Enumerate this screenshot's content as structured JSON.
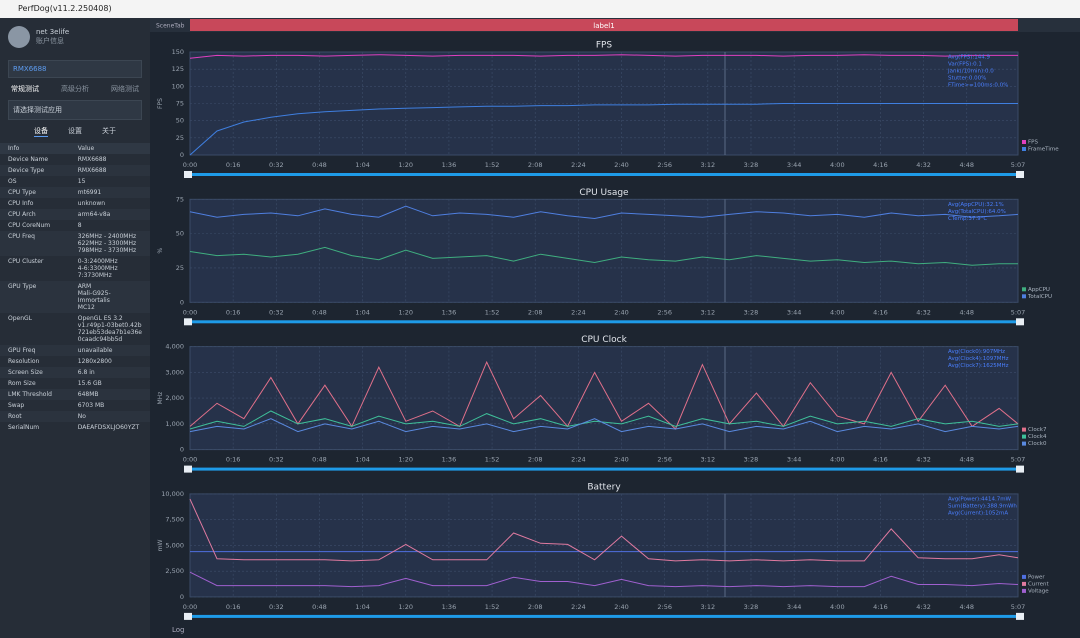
{
  "window": {
    "title": "PerfDog(v11.2.250408)"
  },
  "sidebar": {
    "user": "net 3elife",
    "account": "账户信息",
    "device": "RMX6688",
    "mode_tabs": [
      "常规测试",
      "高级分析",
      "网络测试"
    ],
    "app_select": "请选择测试应用",
    "tabs": [
      "设备",
      "设置",
      "关于"
    ],
    "info_header": [
      "Info",
      "Value"
    ],
    "info_rows": [
      [
        "Device Name",
        "RMX6688"
      ],
      [
        "Device Type",
        "RMX6688"
      ],
      [
        "OS",
        "15"
      ],
      [
        "CPU Type",
        "mt6991"
      ],
      [
        "CPU Info",
        "unknown"
      ],
      [
        "CPU Arch",
        "arm64-v8a"
      ],
      [
        "CPU CoreNum",
        "8"
      ],
      [
        "CPU Freq",
        "326MHz - 2400MHz\n622MHz - 3300MHz\n798MHz - 3730MHz"
      ],
      [
        "CPU Cluster",
        "0-3:2400MHz\n4-6:3300MHz\n7:3730MHz"
      ],
      [
        "GPU Type",
        "ARM\nMali-G925-Immortalis\nMC12"
      ],
      [
        "OpenGL",
        "OpenGL ES 3.2\nv1.r49p1-03bet0.42b\n721eb53dea7b1e36e\n0caadc94bb5d"
      ],
      [
        "GPU Freq",
        "unavailable"
      ],
      [
        "Resolution",
        "1280x2800"
      ],
      [
        "Screen Size",
        "6.8 in"
      ],
      [
        "Rom Size",
        "15.6 GB"
      ],
      [
        "LMK Threshold",
        "648MB"
      ],
      [
        "Swap",
        "6703 MB"
      ],
      [
        "Root",
        "No"
      ],
      [
        "SerialNum",
        "DAEAFDSXLJO60YZT"
      ]
    ]
  },
  "toolbar": {
    "scene_tab": "SceneTab",
    "label": "label1",
    "log": "Log"
  },
  "chart_data": [
    {
      "type": "line",
      "title": "FPS",
      "ylabel": "FPS",
      "grid": true,
      "x": [
        0,
        10,
        20,
        30,
        40,
        50,
        60,
        70,
        80,
        90,
        100,
        110,
        120,
        130,
        140,
        150,
        160,
        170,
        180,
        190,
        200,
        210,
        220,
        230,
        240,
        250,
        260,
        270,
        280,
        290,
        300,
        307
      ],
      "xlim": [
        0,
        307
      ],
      "xticks": [
        {
          "value": 0,
          "label": "0:00"
        },
        {
          "value": 16,
          "label": "0:16"
        },
        {
          "value": 32,
          "label": "0:32"
        },
        {
          "value": 48,
          "label": "0:48"
        },
        {
          "value": 64,
          "label": "1:04"
        },
        {
          "value": 80,
          "label": "1:20"
        },
        {
          "value": 96,
          "label": "1:36"
        },
        {
          "value": 112,
          "label": "1:52"
        },
        {
          "value": 128,
          "label": "2:08"
        },
        {
          "value": 144,
          "label": "2:24"
        },
        {
          "value": 160,
          "label": "2:40"
        },
        {
          "value": 176,
          "label": "2:56"
        },
        {
          "value": 192,
          "label": "3:12"
        },
        {
          "value": 208,
          "label": "3:28"
        },
        {
          "value": 224,
          "label": "3:44"
        },
        {
          "value": 240,
          "label": "4:00"
        },
        {
          "value": 256,
          "label": "4:16"
        },
        {
          "value": 272,
          "label": "4:32"
        },
        {
          "value": 288,
          "label": "4:48"
        },
        {
          "value": 307,
          "label": "5:07"
        }
      ],
      "ylim": [
        0,
        150
      ],
      "yticks": [
        0,
        25,
        50,
        75,
        100,
        125,
        150
      ],
      "series": [
        {
          "name": "FPS",
          "color": "#e040c0",
          "values": [
            141,
            145,
            144,
            145,
            145,
            144,
            145,
            146,
            145,
            144,
            145,
            145,
            145,
            144,
            145,
            145,
            146,
            145,
            144,
            145,
            145,
            145,
            144,
            145,
            145,
            146,
            145,
            145,
            144,
            145,
            145,
            145
          ]
        },
        {
          "name": "FrameTime",
          "color": "#3f7fe0",
          "values": [
            0,
            35,
            48,
            55,
            60,
            63,
            65,
            67,
            68,
            69,
            70,
            71,
            71,
            72,
            72,
            73,
            73,
            73,
            74,
            74,
            74,
            74,
            75,
            75,
            75,
            75,
            75,
            75,
            75,
            75,
            75,
            75
          ]
        }
      ],
      "stats": [
        "Avg(FPS):144.9",
        "Var(FPS):0.1",
        "Jank(/10min):0.0",
        "Stutter:0.00%",
        "FTime>=100ms:0.0%"
      ]
    },
    {
      "type": "line",
      "title": "CPU Usage",
      "ylabel": "%",
      "grid": true,
      "x": [
        0,
        10,
        20,
        30,
        40,
        50,
        60,
        70,
        80,
        90,
        100,
        110,
        120,
        130,
        140,
        150,
        160,
        170,
        180,
        190,
        200,
        210,
        220,
        230,
        240,
        250,
        260,
        270,
        280,
        290,
        300,
        307
      ],
      "xlim": [
        0,
        307
      ],
      "xticks": [
        {
          "value": 0,
          "label": "0:00"
        },
        {
          "value": 16,
          "label": "0:16"
        },
        {
          "value": 32,
          "label": "0:32"
        },
        {
          "value": 48,
          "label": "0:48"
        },
        {
          "value": 64,
          "label": "1:04"
        },
        {
          "value": 80,
          "label": "1:20"
        },
        {
          "value": 96,
          "label": "1:36"
        },
        {
          "value": 112,
          "label": "1:52"
        },
        {
          "value": 128,
          "label": "2:08"
        },
        {
          "value": 144,
          "label": "2:24"
        },
        {
          "value": 160,
          "label": "2:40"
        },
        {
          "value": 176,
          "label": "2:56"
        },
        {
          "value": 192,
          "label": "3:12"
        },
        {
          "value": 208,
          "label": "3:28"
        },
        {
          "value": 224,
          "label": "3:44"
        },
        {
          "value": 240,
          "label": "4:00"
        },
        {
          "value": 256,
          "label": "4:16"
        },
        {
          "value": 272,
          "label": "4:32"
        },
        {
          "value": 288,
          "label": "4:48"
        },
        {
          "value": 307,
          "label": "5:07"
        }
      ],
      "ylim": [
        0,
        75
      ],
      "yticks": [
        0,
        25,
        50,
        75
      ],
      "series": [
        {
          "name": "AppCPU",
          "color": "#3fae7f",
          "values": [
            37,
            34,
            35,
            33,
            35,
            40,
            34,
            31,
            38,
            32,
            33,
            34,
            30,
            35,
            32,
            29,
            33,
            31,
            30,
            33,
            31,
            34,
            32,
            30,
            31,
            29,
            30,
            28,
            29,
            27,
            28,
            28
          ]
        },
        {
          "name": "TotalCPU",
          "color": "#4f7fe0",
          "values": [
            66,
            62,
            64,
            65,
            63,
            68,
            64,
            62,
            70,
            63,
            65,
            64,
            62,
            66,
            63,
            61,
            65,
            64,
            63,
            62,
            64,
            66,
            65,
            63,
            64,
            62,
            65,
            63,
            64,
            62,
            63,
            64
          ]
        }
      ],
      "stats": [
        "Avg(AppCPU):32.1%",
        "Avg(TotalCPU):64.0%",
        "CTemp:37.9°C"
      ]
    },
    {
      "type": "line",
      "title": "CPU Clock",
      "ylabel": "MHz",
      "grid": true,
      "x": [
        0,
        10,
        20,
        30,
        40,
        50,
        60,
        70,
        80,
        90,
        100,
        110,
        120,
        130,
        140,
        150,
        160,
        170,
        180,
        190,
        200,
        210,
        220,
        230,
        240,
        250,
        260,
        270,
        280,
        290,
        300,
        307
      ],
      "xlim": [
        0,
        307
      ],
      "xticks": [
        {
          "value": 0,
          "label": "0:00"
        },
        {
          "value": 16,
          "label": "0:16"
        },
        {
          "value": 32,
          "label": "0:32"
        },
        {
          "value": 48,
          "label": "0:48"
        },
        {
          "value": 64,
          "label": "1:04"
        },
        {
          "value": 80,
          "label": "1:20"
        },
        {
          "value": 96,
          "label": "1:36"
        },
        {
          "value": 112,
          "label": "1:52"
        },
        {
          "value": 128,
          "label": "2:08"
        },
        {
          "value": 144,
          "label": "2:24"
        },
        {
          "value": 160,
          "label": "2:40"
        },
        {
          "value": 176,
          "label": "2:56"
        },
        {
          "value": 192,
          "label": "3:12"
        },
        {
          "value": 208,
          "label": "3:28"
        },
        {
          "value": 224,
          "label": "3:44"
        },
        {
          "value": 240,
          "label": "4:00"
        },
        {
          "value": 256,
          "label": "4:16"
        },
        {
          "value": 272,
          "label": "4:32"
        },
        {
          "value": 288,
          "label": "4:48"
        },
        {
          "value": 307,
          "label": "5:07"
        }
      ],
      "ylim": [
        0,
        4000
      ],
      "yticks": [
        0,
        {
          "value": 1000,
          "label": "1,000"
        },
        {
          "value": 2000,
          "label": "2,000"
        },
        {
          "value": 3000,
          "label": "3,000"
        },
        {
          "value": 4000,
          "label": "4,000"
        }
      ],
      "series": [
        {
          "name": "Clock7",
          "color": "#e0708a",
          "values": [
            900,
            1800,
            1200,
            2800,
            1000,
            2500,
            900,
            3200,
            1100,
            1500,
            900,
            3400,
            1200,
            2100,
            900,
            3000,
            1100,
            1800,
            800,
            3300,
            1000,
            2200,
            900,
            2600,
            1300,
            1000,
            3000,
            1100,
            2500,
            900,
            1600,
            1000
          ]
        },
        {
          "name": "Clock4",
          "color": "#3fc09a",
          "values": [
            800,
            1100,
            900,
            1500,
            1000,
            1200,
            900,
            1300,
            1000,
            1100,
            900,
            1400,
            1000,
            1200,
            900,
            1100,
            1000,
            1300,
            900,
            1200,
            1000,
            1100,
            900,
            1300,
            1000,
            1100,
            900,
            1200,
            1000,
            1100,
            900,
            1000
          ]
        },
        {
          "name": "Clock0",
          "color": "#5a8ae0",
          "values": [
            700,
            900,
            800,
            1200,
            700,
            1000,
            800,
            1100,
            700,
            900,
            800,
            1000,
            700,
            900,
            800,
            1200,
            700,
            900,
            800,
            1000,
            700,
            900,
            800,
            1100,
            700,
            900,
            800,
            1000,
            700,
            900,
            800,
            900
          ]
        }
      ],
      "stats": [
        "Avg(Clock0):907MHz",
        "Avg(Clock4):1097MHz",
        "Avg(Clock7):1625MHz"
      ]
    },
    {
      "type": "line",
      "title": "Battery",
      "ylabel": "mW",
      "grid": true,
      "x": [
        0,
        10,
        20,
        30,
        40,
        50,
        60,
        70,
        80,
        90,
        100,
        110,
        120,
        130,
        140,
        150,
        160,
        170,
        180,
        190,
        200,
        210,
        220,
        230,
        240,
        250,
        260,
        270,
        280,
        290,
        300,
        307
      ],
      "xlim": [
        0,
        307
      ],
      "xticks": [
        {
          "value": 0,
          "label": "0:00"
        },
        {
          "value": 16,
          "label": "0:16"
        },
        {
          "value": 32,
          "label": "0:32"
        },
        {
          "value": 48,
          "label": "0:48"
        },
        {
          "value": 64,
          "label": "1:04"
        },
        {
          "value": 80,
          "label": "1:20"
        },
        {
          "value": 96,
          "label": "1:36"
        },
        {
          "value": 112,
          "label": "1:52"
        },
        {
          "value": 128,
          "label": "2:08"
        },
        {
          "value": 144,
          "label": "2:24"
        },
        {
          "value": 160,
          "label": "2:40"
        },
        {
          "value": 176,
          "label": "2:56"
        },
        {
          "value": 192,
          "label": "3:12"
        },
        {
          "value": 208,
          "label": "3:28"
        },
        {
          "value": 224,
          "label": "3:44"
        },
        {
          "value": 240,
          "label": "4:00"
        },
        {
          "value": 256,
          "label": "4:16"
        },
        {
          "value": 272,
          "label": "4:32"
        },
        {
          "value": 288,
          "label": "4:48"
        },
        {
          "value": 307,
          "label": "5:07"
        }
      ],
      "ylim": [
        0,
        10000
      ],
      "yticks": [
        0,
        {
          "value": 2500,
          "label": "2,500"
        },
        {
          "value": 5000,
          "label": "5,000"
        },
        {
          "value": 7500,
          "label": "7,500"
        },
        {
          "value": 10000,
          "label": "10,000"
        }
      ],
      "series": [
        {
          "name": "Power",
          "color": "#4f6fe0",
          "values": [
            4400,
            4400,
            4400,
            4400,
            4400,
            4400,
            4400,
            4400,
            4400,
            4400,
            4400,
            4400,
            4400,
            4400,
            4400,
            4400,
            4400,
            4400,
            4400,
            4400,
            4400,
            4400,
            4400,
            4400,
            4400,
            4400,
            4400,
            4400,
            4400,
            4400,
            4400,
            4400
          ]
        },
        {
          "name": "Current",
          "color": "#e07aa0",
          "values": [
            9500,
            3700,
            3600,
            3600,
            3600,
            3600,
            3500,
            3600,
            5100,
            3600,
            3600,
            3600,
            6200,
            5200,
            5100,
            3600,
            5900,
            3700,
            3500,
            3600,
            3500,
            3600,
            3500,
            3600,
            3500,
            3500,
            6600,
            3800,
            3700,
            3700,
            4100,
            3800
          ]
        },
        {
          "name": "Voltage",
          "color": "#a060d0",
          "values": [
            2400,
            1100,
            1100,
            1100,
            1100,
            1100,
            1000,
            1100,
            1800,
            1100,
            1100,
            1100,
            1900,
            1500,
            1500,
            1100,
            1700,
            1100,
            1000,
            1100,
            1000,
            1100,
            1000,
            1100,
            1000,
            1000,
            2000,
            1200,
            1200,
            1100,
            1300,
            1200
          ]
        }
      ],
      "stats": [
        "Avg(Power):4414.7mW",
        "Sum(Battery):388.9mWh",
        "Avg(Current):1052mA"
      ]
    }
  ]
}
